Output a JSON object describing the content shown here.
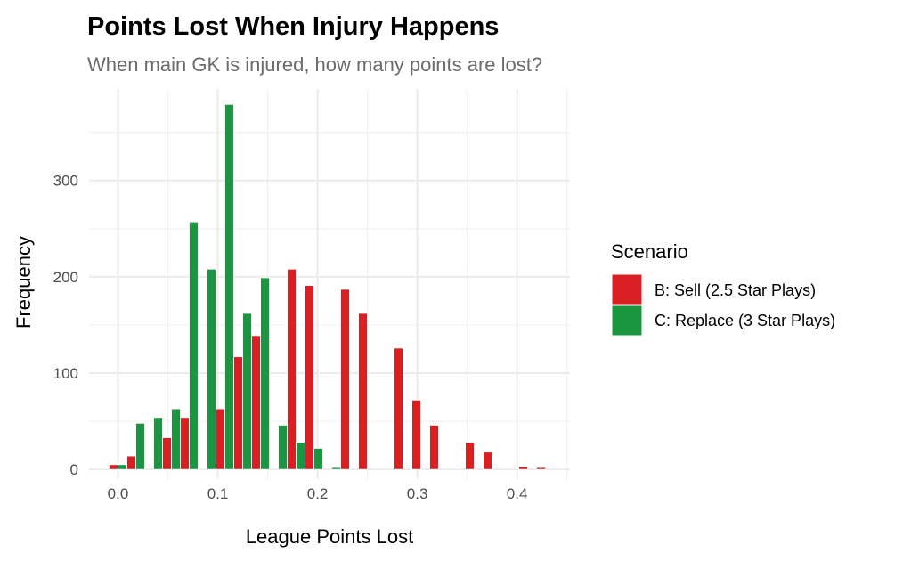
{
  "chart_data": {
    "type": "bar",
    "title": "Points Lost When Injury Happens",
    "subtitle": "When main GK is injured, how many points are lost?",
    "xlabel": "League Points Lost",
    "ylabel": "Frequency",
    "xlim": [
      -0.029,
      0.453
    ],
    "ylim": [
      -10,
      395
    ],
    "xticks": [
      0.0,
      0.1,
      0.2,
      0.3,
      0.4
    ],
    "xtick_labels": [
      "0.0",
      "0.1",
      "0.2",
      "0.3",
      "0.4"
    ],
    "yticks": [
      0,
      100,
      200,
      300
    ],
    "ytick_labels": [
      "0",
      "100",
      "200",
      "300"
    ],
    "grid": true,
    "binwidth": 0.0179,
    "bin_centers": [
      0.0,
      0.0179,
      0.0357,
      0.0536,
      0.0714,
      0.0893,
      0.1071,
      0.125,
      0.1429,
      0.1607,
      0.1786,
      0.1964,
      0.2143,
      0.2321,
      0.25,
      0.2679,
      0.2857,
      0.3036,
      0.3214,
      0.3393,
      0.3571,
      0.375,
      0.3929,
      0.4107,
      0.4286
    ],
    "legend": {
      "title": "Scenario",
      "placement": "right"
    },
    "series": [
      {
        "name": "B: Sell (2.5 Star Plays)",
        "color": "#DA1F22",
        "values": [
          5,
          14,
          0,
          33,
          54,
          0,
          63,
          117,
          139,
          0,
          208,
          191,
          0,
          187,
          162,
          0,
          126,
          72,
          46,
          0,
          28,
          18,
          0,
          3,
          2
        ]
      },
      {
        "name": "C: Replace (3 Star Plays)",
        "color": "#1A9641",
        "values": [
          5,
          48,
          54,
          63,
          257,
          208,
          379,
          162,
          199,
          46,
          28,
          22,
          2,
          0,
          0,
          0,
          0,
          0,
          0,
          0,
          0,
          0,
          0,
          0,
          0
        ]
      }
    ]
  }
}
